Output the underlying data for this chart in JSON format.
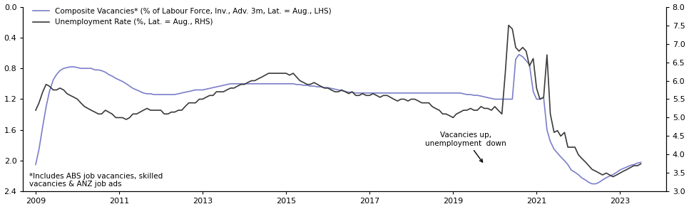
{
  "legend1": "Composite Vacancies* (% of Labour Force, Inv., Adv. 3m, Lat. = Aug., LHS)",
  "legend2": "Unemployment Rate (%, Lat. = Aug., RHS)",
  "annotation1": "*Includes ABS job vacancies, skilled\nvacancies & ANZ job ads",
  "annotation2": "Vacancies up,\nunemployment  down",
  "lhs_color": "#7b7ec8",
  "rhs_color": "#3a3a3a",
  "ylim_lhs": [
    2.4,
    0.0
  ],
  "ylim_rhs": [
    3.0,
    8.0
  ],
  "yticks_lhs": [
    0.0,
    0.4,
    0.8,
    1.2,
    1.6,
    2.0,
    2.4
  ],
  "yticks_rhs": [
    3.0,
    3.5,
    4.0,
    4.5,
    5.0,
    5.5,
    6.0,
    6.5,
    7.0,
    7.5,
    8.0
  ],
  "xtick_years": [
    2009,
    2011,
    2013,
    2015,
    2017,
    2019,
    2021,
    2023
  ],
  "xlim": [
    2008.7,
    2024.1
  ],
  "vacancies": [
    [
      2009.0,
      2.05
    ],
    [
      2009.08,
      1.85
    ],
    [
      2009.17,
      1.55
    ],
    [
      2009.25,
      1.3
    ],
    [
      2009.33,
      1.1
    ],
    [
      2009.42,
      0.95
    ],
    [
      2009.5,
      0.88
    ],
    [
      2009.58,
      0.83
    ],
    [
      2009.67,
      0.8
    ],
    [
      2009.75,
      0.79
    ],
    [
      2009.83,
      0.78
    ],
    [
      2009.92,
      0.78
    ],
    [
      2010.0,
      0.79
    ],
    [
      2010.08,
      0.8
    ],
    [
      2010.17,
      0.8
    ],
    [
      2010.25,
      0.8
    ],
    [
      2010.33,
      0.8
    ],
    [
      2010.42,
      0.82
    ],
    [
      2010.5,
      0.82
    ],
    [
      2010.58,
      0.83
    ],
    [
      2010.67,
      0.85
    ],
    [
      2010.75,
      0.88
    ],
    [
      2010.83,
      0.9
    ],
    [
      2010.92,
      0.93
    ],
    [
      2011.0,
      0.95
    ],
    [
      2011.08,
      0.97
    ],
    [
      2011.17,
      1.0
    ],
    [
      2011.25,
      1.03
    ],
    [
      2011.33,
      1.06
    ],
    [
      2011.42,
      1.08
    ],
    [
      2011.5,
      1.1
    ],
    [
      2011.58,
      1.12
    ],
    [
      2011.67,
      1.13
    ],
    [
      2011.75,
      1.13
    ],
    [
      2011.83,
      1.14
    ],
    [
      2011.92,
      1.14
    ],
    [
      2012.0,
      1.14
    ],
    [
      2012.08,
      1.14
    ],
    [
      2012.17,
      1.14
    ],
    [
      2012.25,
      1.14
    ],
    [
      2012.33,
      1.14
    ],
    [
      2012.42,
      1.13
    ],
    [
      2012.5,
      1.12
    ],
    [
      2012.58,
      1.11
    ],
    [
      2012.67,
      1.1
    ],
    [
      2012.75,
      1.09
    ],
    [
      2012.83,
      1.08
    ],
    [
      2012.92,
      1.08
    ],
    [
      2013.0,
      1.08
    ],
    [
      2013.08,
      1.07
    ],
    [
      2013.17,
      1.06
    ],
    [
      2013.25,
      1.05
    ],
    [
      2013.33,
      1.04
    ],
    [
      2013.42,
      1.03
    ],
    [
      2013.5,
      1.02
    ],
    [
      2013.58,
      1.01
    ],
    [
      2013.67,
      1.0
    ],
    [
      2013.75,
      1.0
    ],
    [
      2013.83,
      1.0
    ],
    [
      2013.92,
      1.0
    ],
    [
      2014.0,
      1.0
    ],
    [
      2014.08,
      1.0
    ],
    [
      2014.17,
      1.0
    ],
    [
      2014.25,
      1.0
    ],
    [
      2014.33,
      1.0
    ],
    [
      2014.42,
      1.0
    ],
    [
      2014.5,
      1.0
    ],
    [
      2014.58,
      1.0
    ],
    [
      2014.67,
      1.0
    ],
    [
      2014.75,
      1.0
    ],
    [
      2014.83,
      1.0
    ],
    [
      2014.92,
      1.0
    ],
    [
      2015.0,
      1.0
    ],
    [
      2015.08,
      1.0
    ],
    [
      2015.17,
      1.0
    ],
    [
      2015.25,
      1.01
    ],
    [
      2015.33,
      1.01
    ],
    [
      2015.42,
      1.02
    ],
    [
      2015.5,
      1.02
    ],
    [
      2015.58,
      1.03
    ],
    [
      2015.67,
      1.03
    ],
    [
      2015.75,
      1.04
    ],
    [
      2015.83,
      1.04
    ],
    [
      2015.92,
      1.05
    ],
    [
      2016.0,
      1.05
    ],
    [
      2016.08,
      1.06
    ],
    [
      2016.17,
      1.07
    ],
    [
      2016.25,
      1.08
    ],
    [
      2016.33,
      1.09
    ],
    [
      2016.42,
      1.1
    ],
    [
      2016.5,
      1.11
    ],
    [
      2016.58,
      1.11
    ],
    [
      2016.67,
      1.12
    ],
    [
      2016.75,
      1.12
    ],
    [
      2016.83,
      1.12
    ],
    [
      2016.92,
      1.12
    ],
    [
      2017.0,
      1.12
    ],
    [
      2017.08,
      1.12
    ],
    [
      2017.17,
      1.12
    ],
    [
      2017.25,
      1.12
    ],
    [
      2017.33,
      1.12
    ],
    [
      2017.42,
      1.12
    ],
    [
      2017.5,
      1.12
    ],
    [
      2017.58,
      1.12
    ],
    [
      2017.67,
      1.12
    ],
    [
      2017.75,
      1.12
    ],
    [
      2017.83,
      1.12
    ],
    [
      2017.92,
      1.12
    ],
    [
      2018.0,
      1.12
    ],
    [
      2018.08,
      1.12
    ],
    [
      2018.17,
      1.12
    ],
    [
      2018.25,
      1.12
    ],
    [
      2018.33,
      1.12
    ],
    [
      2018.42,
      1.12
    ],
    [
      2018.5,
      1.12
    ],
    [
      2018.58,
      1.12
    ],
    [
      2018.67,
      1.12
    ],
    [
      2018.75,
      1.12
    ],
    [
      2018.83,
      1.12
    ],
    [
      2018.92,
      1.12
    ],
    [
      2019.0,
      1.12
    ],
    [
      2019.08,
      1.12
    ],
    [
      2019.17,
      1.12
    ],
    [
      2019.25,
      1.13
    ],
    [
      2019.33,
      1.14
    ],
    [
      2019.42,
      1.14
    ],
    [
      2019.5,
      1.15
    ],
    [
      2019.58,
      1.15
    ],
    [
      2019.67,
      1.16
    ],
    [
      2019.75,
      1.17
    ],
    [
      2019.83,
      1.18
    ],
    [
      2019.92,
      1.19
    ],
    [
      2020.0,
      1.2
    ],
    [
      2020.08,
      1.2
    ],
    [
      2020.17,
      1.2
    ],
    [
      2020.25,
      1.2
    ],
    [
      2020.33,
      1.2
    ],
    [
      2020.42,
      1.2
    ],
    [
      2020.5,
      0.68
    ],
    [
      2020.58,
      0.62
    ],
    [
      2020.67,
      0.65
    ],
    [
      2020.75,
      0.7
    ],
    [
      2020.83,
      0.75
    ],
    [
      2020.92,
      1.1
    ],
    [
      2021.0,
      1.2
    ],
    [
      2021.08,
      1.2
    ],
    [
      2021.17,
      1.18
    ],
    [
      2021.25,
      1.6
    ],
    [
      2021.33,
      1.75
    ],
    [
      2021.42,
      1.85
    ],
    [
      2021.5,
      1.9
    ],
    [
      2021.58,
      1.95
    ],
    [
      2021.67,
      2.0
    ],
    [
      2021.75,
      2.05
    ],
    [
      2021.83,
      2.12
    ],
    [
      2021.92,
      2.15
    ],
    [
      2022.0,
      2.18
    ],
    [
      2022.08,
      2.22
    ],
    [
      2022.17,
      2.25
    ],
    [
      2022.25,
      2.28
    ],
    [
      2022.33,
      2.3
    ],
    [
      2022.42,
      2.3
    ],
    [
      2022.5,
      2.28
    ],
    [
      2022.58,
      2.25
    ],
    [
      2022.67,
      2.22
    ],
    [
      2022.75,
      2.2
    ],
    [
      2022.83,
      2.18
    ],
    [
      2022.92,
      2.15
    ],
    [
      2023.0,
      2.12
    ],
    [
      2023.08,
      2.1
    ],
    [
      2023.17,
      2.08
    ],
    [
      2023.25,
      2.06
    ],
    [
      2023.33,
      2.05
    ],
    [
      2023.42,
      2.03
    ],
    [
      2023.5,
      2.02
    ]
  ],
  "unemployment": [
    [
      2009.0,
      5.2
    ],
    [
      2009.08,
      5.4
    ],
    [
      2009.17,
      5.7
    ],
    [
      2009.25,
      5.9
    ],
    [
      2009.33,
      5.85
    ],
    [
      2009.42,
      5.75
    ],
    [
      2009.5,
      5.75
    ],
    [
      2009.58,
      5.8
    ],
    [
      2009.67,
      5.75
    ],
    [
      2009.75,
      5.65
    ],
    [
      2009.83,
      5.6
    ],
    [
      2009.92,
      5.55
    ],
    [
      2010.0,
      5.5
    ],
    [
      2010.08,
      5.4
    ],
    [
      2010.17,
      5.3
    ],
    [
      2010.25,
      5.25
    ],
    [
      2010.33,
      5.2
    ],
    [
      2010.42,
      5.15
    ],
    [
      2010.5,
      5.1
    ],
    [
      2010.58,
      5.1
    ],
    [
      2010.67,
      5.2
    ],
    [
      2010.75,
      5.15
    ],
    [
      2010.83,
      5.1
    ],
    [
      2010.92,
      5.0
    ],
    [
      2011.0,
      5.0
    ],
    [
      2011.08,
      5.0
    ],
    [
      2011.17,
      4.95
    ],
    [
      2011.25,
      5.0
    ],
    [
      2011.33,
      5.1
    ],
    [
      2011.42,
      5.1
    ],
    [
      2011.5,
      5.15
    ],
    [
      2011.58,
      5.2
    ],
    [
      2011.67,
      5.25
    ],
    [
      2011.75,
      5.2
    ],
    [
      2011.83,
      5.2
    ],
    [
      2011.92,
      5.2
    ],
    [
      2012.0,
      5.2
    ],
    [
      2012.08,
      5.1
    ],
    [
      2012.17,
      5.1
    ],
    [
      2012.25,
      5.15
    ],
    [
      2012.33,
      5.15
    ],
    [
      2012.42,
      5.2
    ],
    [
      2012.5,
      5.2
    ],
    [
      2012.58,
      5.3
    ],
    [
      2012.67,
      5.4
    ],
    [
      2012.75,
      5.4
    ],
    [
      2012.83,
      5.4
    ],
    [
      2012.92,
      5.5
    ],
    [
      2013.0,
      5.5
    ],
    [
      2013.08,
      5.55
    ],
    [
      2013.17,
      5.6
    ],
    [
      2013.25,
      5.6
    ],
    [
      2013.33,
      5.7
    ],
    [
      2013.42,
      5.7
    ],
    [
      2013.5,
      5.7
    ],
    [
      2013.58,
      5.75
    ],
    [
      2013.67,
      5.8
    ],
    [
      2013.75,
      5.8
    ],
    [
      2013.83,
      5.85
    ],
    [
      2013.92,
      5.9
    ],
    [
      2014.0,
      5.9
    ],
    [
      2014.08,
      5.95
    ],
    [
      2014.17,
      6.0
    ],
    [
      2014.25,
      6.0
    ],
    [
      2014.33,
      6.05
    ],
    [
      2014.42,
      6.1
    ],
    [
      2014.5,
      6.15
    ],
    [
      2014.58,
      6.2
    ],
    [
      2014.67,
      6.2
    ],
    [
      2014.75,
      6.2
    ],
    [
      2014.83,
      6.2
    ],
    [
      2014.92,
      6.2
    ],
    [
      2015.0,
      6.2
    ],
    [
      2015.08,
      6.15
    ],
    [
      2015.17,
      6.2
    ],
    [
      2015.25,
      6.1
    ],
    [
      2015.33,
      6.0
    ],
    [
      2015.42,
      5.95
    ],
    [
      2015.5,
      5.9
    ],
    [
      2015.58,
      5.9
    ],
    [
      2015.67,
      5.95
    ],
    [
      2015.75,
      5.9
    ],
    [
      2015.83,
      5.85
    ],
    [
      2015.92,
      5.8
    ],
    [
      2016.0,
      5.8
    ],
    [
      2016.08,
      5.75
    ],
    [
      2016.17,
      5.7
    ],
    [
      2016.25,
      5.7
    ],
    [
      2016.33,
      5.75
    ],
    [
      2016.42,
      5.7
    ],
    [
      2016.5,
      5.65
    ],
    [
      2016.58,
      5.7
    ],
    [
      2016.67,
      5.6
    ],
    [
      2016.75,
      5.6
    ],
    [
      2016.83,
      5.65
    ],
    [
      2016.92,
      5.6
    ],
    [
      2017.0,
      5.6
    ],
    [
      2017.08,
      5.65
    ],
    [
      2017.17,
      5.6
    ],
    [
      2017.25,
      5.55
    ],
    [
      2017.33,
      5.6
    ],
    [
      2017.42,
      5.6
    ],
    [
      2017.5,
      5.55
    ],
    [
      2017.58,
      5.5
    ],
    [
      2017.67,
      5.45
    ],
    [
      2017.75,
      5.5
    ],
    [
      2017.83,
      5.5
    ],
    [
      2017.92,
      5.45
    ],
    [
      2018.0,
      5.5
    ],
    [
      2018.08,
      5.5
    ],
    [
      2018.17,
      5.45
    ],
    [
      2018.25,
      5.4
    ],
    [
      2018.33,
      5.4
    ],
    [
      2018.42,
      5.4
    ],
    [
      2018.5,
      5.3
    ],
    [
      2018.58,
      5.25
    ],
    [
      2018.67,
      5.2
    ],
    [
      2018.75,
      5.1
    ],
    [
      2018.83,
      5.1
    ],
    [
      2018.92,
      5.05
    ],
    [
      2019.0,
      5.0
    ],
    [
      2019.08,
      5.1
    ],
    [
      2019.17,
      5.15
    ],
    [
      2019.25,
      5.2
    ],
    [
      2019.33,
      5.2
    ],
    [
      2019.42,
      5.25
    ],
    [
      2019.5,
      5.2
    ],
    [
      2019.58,
      5.2
    ],
    [
      2019.67,
      5.3
    ],
    [
      2019.75,
      5.25
    ],
    [
      2019.83,
      5.25
    ],
    [
      2019.92,
      5.2
    ],
    [
      2020.0,
      5.3
    ],
    [
      2020.08,
      5.2
    ],
    [
      2020.17,
      5.1
    ],
    [
      2020.25,
      6.2
    ],
    [
      2020.33,
      7.5
    ],
    [
      2020.42,
      7.4
    ],
    [
      2020.5,
      6.9
    ],
    [
      2020.58,
      6.8
    ],
    [
      2020.67,
      6.9
    ],
    [
      2020.75,
      6.8
    ],
    [
      2020.83,
      6.4
    ],
    [
      2020.92,
      6.6
    ],
    [
      2021.0,
      5.8
    ],
    [
      2021.08,
      5.5
    ],
    [
      2021.17,
      5.55
    ],
    [
      2021.25,
      6.7
    ],
    [
      2021.33,
      5.1
    ],
    [
      2021.42,
      4.6
    ],
    [
      2021.5,
      4.65
    ],
    [
      2021.58,
      4.5
    ],
    [
      2021.67,
      4.6
    ],
    [
      2021.75,
      4.2
    ],
    [
      2021.83,
      4.2
    ],
    [
      2021.92,
      4.2
    ],
    [
      2022.0,
      4.0
    ],
    [
      2022.08,
      3.9
    ],
    [
      2022.17,
      3.8
    ],
    [
      2022.25,
      3.7
    ],
    [
      2022.33,
      3.6
    ],
    [
      2022.42,
      3.55
    ],
    [
      2022.5,
      3.5
    ],
    [
      2022.58,
      3.45
    ],
    [
      2022.67,
      3.5
    ],
    [
      2022.75,
      3.45
    ],
    [
      2022.83,
      3.4
    ],
    [
      2022.92,
      3.45
    ],
    [
      2023.0,
      3.5
    ],
    [
      2023.08,
      3.55
    ],
    [
      2023.17,
      3.6
    ],
    [
      2023.25,
      3.65
    ],
    [
      2023.33,
      3.7
    ],
    [
      2023.42,
      3.7
    ],
    [
      2023.5,
      3.75
    ]
  ],
  "bg_color": "#ffffff"
}
